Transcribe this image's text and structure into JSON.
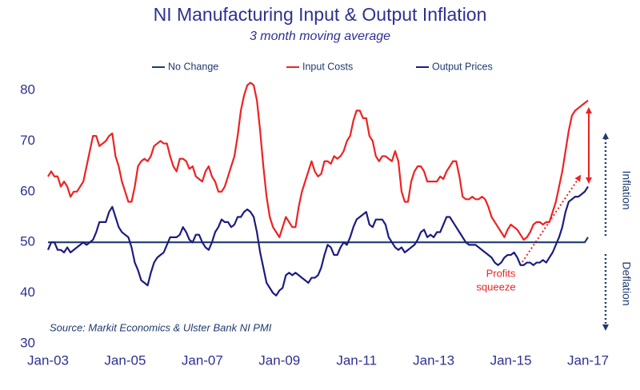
{
  "chart_data": {
    "type": "line",
    "title": "NI Manufacturing Input & Output Inflation",
    "subtitle": "3 month moving average",
    "categories": [
      "Jan-03",
      null,
      null,
      null,
      null,
      null,
      null,
      null,
      null,
      null,
      null,
      null,
      null,
      null,
      null,
      null,
      null,
      null,
      null,
      null,
      null,
      null,
      null,
      null,
      "Jan-05",
      null,
      null,
      null,
      null,
      null,
      null,
      null,
      null,
      null,
      null,
      null,
      null,
      null,
      null,
      null,
      null,
      null,
      null,
      null,
      null,
      null,
      null,
      null,
      "Jan-07",
      null,
      null,
      null,
      null,
      null,
      null,
      null,
      null,
      null,
      null,
      null,
      null,
      null,
      null,
      null,
      null,
      null,
      null,
      null,
      null,
      null,
      null,
      null,
      "Jan-09",
      null,
      null,
      null,
      null,
      null,
      null,
      null,
      null,
      null,
      null,
      null,
      null,
      null,
      null,
      null,
      null,
      null,
      null,
      null,
      null,
      null,
      null,
      null,
      "Jan-11",
      null,
      null,
      null,
      null,
      null,
      null,
      null,
      null,
      null,
      null,
      null,
      null,
      null,
      null,
      null,
      null,
      null,
      null,
      null,
      null,
      null,
      null,
      null,
      "Jan-13",
      null,
      null,
      null,
      null,
      null,
      null,
      null,
      null,
      null,
      null,
      null,
      null,
      null,
      null,
      null,
      null,
      null,
      null,
      null,
      null,
      null,
      null,
      null,
      "Jan-15",
      null,
      null,
      null,
      null,
      null,
      null,
      null,
      null,
      null,
      null,
      null,
      null,
      null,
      null,
      null,
      null,
      null,
      null,
      null,
      null,
      null,
      null,
      null,
      "Jan-17"
    ],
    "series": [
      {
        "name": "No Change",
        "color": "#1f3a6e",
        "values": [
          50,
          50,
          50,
          50,
          50,
          50,
          50,
          50,
          50,
          50,
          50,
          50,
          50,
          50,
          50,
          50,
          50,
          50,
          50,
          50,
          50,
          50,
          50,
          50,
          50,
          50,
          50,
          50,
          50,
          50,
          50,
          50,
          50,
          50,
          50,
          50,
          50,
          50,
          50,
          50,
          50,
          50,
          50,
          50,
          50,
          50,
          50,
          50,
          50,
          50,
          50,
          50,
          50,
          50,
          50,
          50,
          50,
          50,
          50,
          50,
          50,
          50,
          50,
          50,
          50,
          50,
          50,
          50,
          50,
          50,
          50,
          50,
          50,
          50,
          50,
          50,
          50,
          50,
          50,
          50,
          50,
          50,
          50,
          50,
          50,
          50,
          50,
          50,
          50,
          50,
          50,
          50,
          50,
          50,
          50,
          50,
          50,
          50,
          50,
          50,
          50,
          50,
          50,
          50,
          50,
          50,
          50,
          50,
          50,
          50,
          50,
          50,
          50,
          50,
          50,
          50,
          50,
          50,
          50,
          50,
          50,
          50,
          50,
          50,
          50,
          50,
          50,
          50,
          50,
          50,
          50,
          50,
          50,
          50,
          50,
          50,
          50,
          50,
          50,
          50,
          50,
          50,
          50,
          50,
          50,
          50,
          50,
          50,
          50,
          50,
          50,
          50,
          50,
          50,
          50,
          50,
          50,
          50,
          50,
          50,
          50,
          50,
          50,
          50,
          50,
          50,
          50,
          50,
          51
        ]
      },
      {
        "name": "Input Costs",
        "color": "#ee2222",
        "values": [
          63,
          64,
          63,
          63,
          61,
          62,
          61,
          59,
          60,
          60,
          61,
          62,
          65,
          68,
          71,
          71,
          69,
          69.5,
          70,
          71,
          71.5,
          67,
          65,
          62,
          60,
          58,
          58,
          61,
          65,
          66,
          66.5,
          66,
          67,
          69,
          69.5,
          70,
          69.5,
          69.5,
          67,
          65,
          64,
          66.5,
          66.5,
          66,
          64.5,
          65,
          63,
          62.5,
          62,
          64,
          65,
          63,
          62,
          60,
          60,
          61,
          63,
          65,
          67,
          71,
          76,
          79,
          81,
          81.5,
          81,
          78,
          72,
          65,
          59,
          55,
          53,
          52,
          51,
          53,
          55,
          54,
          53,
          53,
          57,
          60,
          62,
          64,
          66,
          64,
          63,
          63.5,
          66,
          66,
          65.5,
          67,
          66.5,
          67,
          68,
          70,
          71,
          74,
          76,
          76,
          74.5,
          74.5,
          71,
          70,
          67,
          66,
          67,
          67,
          66.5,
          66,
          68,
          66,
          60,
          58,
          58,
          62,
          64,
          65,
          65,
          64,
          62,
          62,
          62,
          62,
          63,
          62.5,
          64,
          65,
          66,
          66,
          63,
          59,
          58.5,
          58.5,
          59,
          58.5,
          58.5,
          59,
          58.5,
          57,
          55,
          54,
          53,
          52,
          51,
          52.5,
          53.5,
          53,
          52.5,
          51.5,
          50.5,
          51,
          52,
          53.5,
          54,
          54,
          53.5,
          54,
          54,
          56,
          58,
          61,
          64,
          68,
          72,
          75,
          76,
          76.5,
          77,
          77.5,
          78
        ]
      },
      {
        "name": "Output Prices",
        "color": "#1c1c80",
        "values": [
          48.5,
          50,
          50,
          48.5,
          48.5,
          48,
          49,
          48,
          48.5,
          49,
          49.5,
          50,
          49.5,
          50,
          50.5,
          52,
          54,
          54,
          54,
          56,
          57,
          55,
          53,
          52,
          51.5,
          51,
          49,
          46,
          44.5,
          42.5,
          42,
          41.5,
          44,
          46,
          47,
          47.5,
          48,
          49.5,
          51,
          51,
          51,
          51.5,
          53,
          52,
          50.5,
          50,
          51.5,
          51.5,
          50,
          49,
          48.5,
          50,
          52,
          53,
          54.5,
          54,
          54,
          53,
          53.5,
          55,
          55,
          56,
          56.5,
          56,
          55,
          52,
          48,
          45,
          42,
          41,
          40,
          39.5,
          40.5,
          41,
          43.5,
          44,
          43.5,
          44,
          43.5,
          43,
          42.5,
          42,
          43,
          43,
          43.5,
          45,
          47.5,
          49.5,
          49,
          47.5,
          47.5,
          49,
          50,
          49.5,
          51,
          53,
          54.5,
          55,
          55.5,
          56,
          53.5,
          53,
          54.5,
          54.5,
          54.5,
          53.5,
          51,
          50,
          49,
          48.5,
          49,
          48,
          48.5,
          49,
          49.5,
          50.5,
          52,
          52.5,
          51,
          51.5,
          51,
          52,
          52,
          53.5,
          55,
          55,
          54,
          53,
          52,
          51,
          50,
          49.5,
          49.5,
          49.5,
          49,
          48.5,
          48,
          47.5,
          47,
          46,
          45.5,
          46,
          47,
          47.5,
          47.5,
          48,
          47,
          45.5,
          45.5,
          46,
          46,
          45.5,
          46,
          46,
          46.5,
          46,
          47,
          48,
          49.5,
          51,
          53,
          56,
          58,
          58.5,
          59,
          59,
          59.5,
          60,
          61
        ]
      }
    ],
    "ylim": [
      30,
      80
    ],
    "yticks": [
      30,
      40,
      50,
      60,
      70,
      80
    ],
    "grid": false,
    "legend": "top",
    "annotations": {
      "source": "Source: Markit Economics & Ulster Bank NI PMI",
      "profits_squeeze": [
        "Profits",
        "squeeze"
      ],
      "inflation": "Inflation",
      "deflation": "Deflation"
    }
  }
}
